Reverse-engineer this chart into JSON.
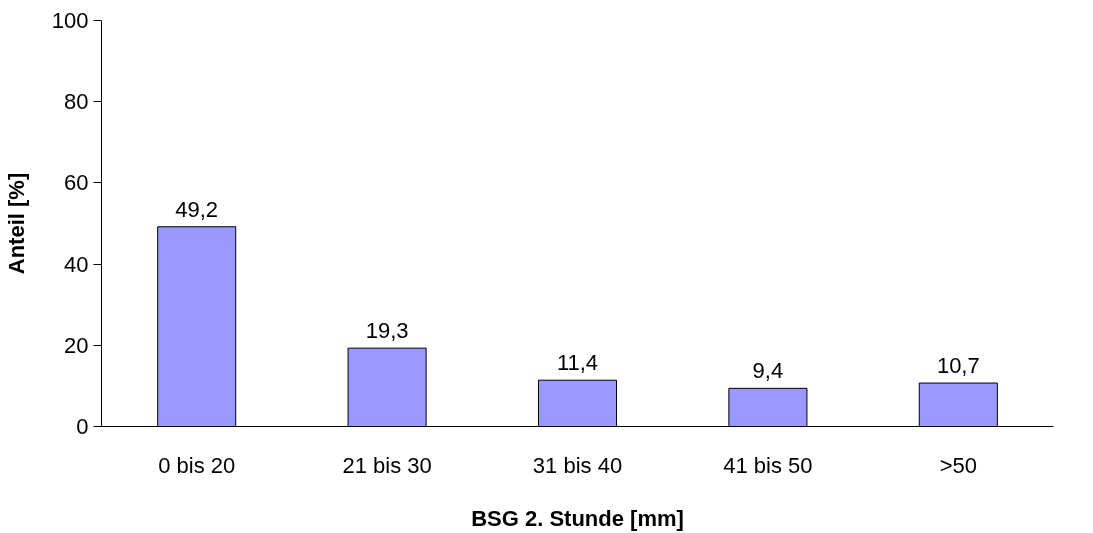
{
  "chart_data": {
    "type": "bar",
    "xlabel": "BSG 2. Stunde [mm]",
    "ylabel": "Anteil [%]",
    "categories": [
      "0 bis 20",
      "21 bis 30",
      "31 bis 40",
      "41 bis 50",
      ">50"
    ],
    "values": [
      49.2,
      19.3,
      11.4,
      9.4,
      10.7
    ],
    "value_labels": [
      "49,2",
      "19,3",
      "11,4",
      "9,4",
      "10,7"
    ],
    "color": "#9999ff",
    "ylim": [
      0,
      100
    ],
    "yticks": [
      0,
      20,
      40,
      60,
      80,
      100
    ],
    "grid": false
  }
}
